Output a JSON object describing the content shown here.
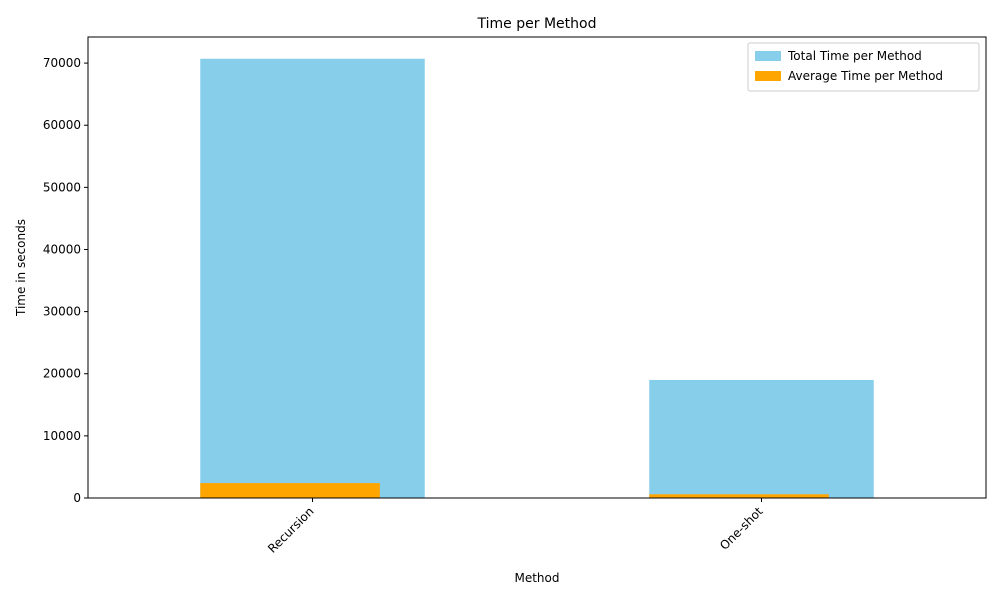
{
  "chart_data": {
    "type": "bar",
    "title": "Time per Method",
    "xlabel": "Method",
    "ylabel": "Time in seconds",
    "categories": [
      "Recursion",
      "One-shot"
    ],
    "series": [
      {
        "name": "Total Time per Method",
        "values": [
          70700,
          19000
        ],
        "color": "#87ceeb"
      },
      {
        "name": "Average Time per Method",
        "values": [
          2400,
          600
        ],
        "color": "#ffa500"
      }
    ],
    "ylim": [
      0,
      74200
    ],
    "yticks": [
      0,
      10000,
      20000,
      30000,
      40000,
      50000,
      60000,
      70000
    ],
    "grid": false,
    "legend_position": "top-right"
  }
}
